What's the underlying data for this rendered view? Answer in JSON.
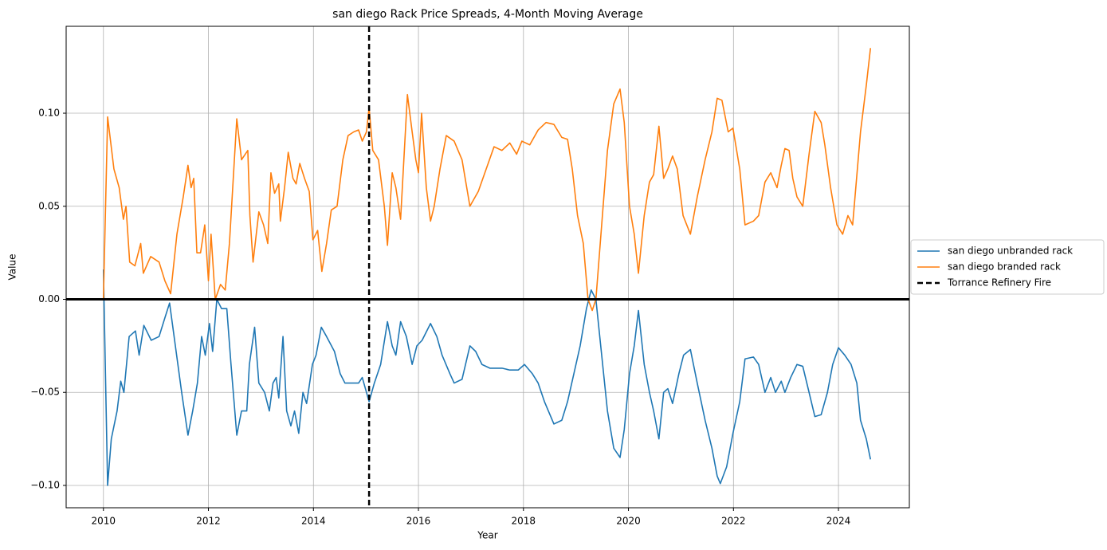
{
  "chart_data": {
    "type": "line",
    "title": "san diego Rack Price Spreads, 4-Month Moving Average",
    "x_label": "Year",
    "y_label": "Value",
    "xlim": [
      2009.29,
      2025.35
    ],
    "ylim": [
      -0.112,
      0.1467
    ],
    "xticks": [
      2010,
      2012,
      2014,
      2016,
      2018,
      2020,
      2022,
      2024
    ],
    "yticks": [
      {
        "value": -0.1,
        "label": "−0.10"
      },
      {
        "value": -0.05,
        "label": "−0.05"
      },
      {
        "value": 0,
        "label": "0.00"
      },
      {
        "value": 0.05,
        "label": "0.05"
      },
      {
        "value": 0.1,
        "label": "0.10"
      }
    ],
    "grid": true,
    "legend": "right",
    "hline": 0,
    "vline": {
      "x": 2015.06,
      "name": "Torrance Refinery Fire",
      "color": "#000000"
    },
    "series": [
      {
        "name": "san diego unbranded rack",
        "color": "#1f77b4",
        "x": [
          2010.0,
          2010.08,
          2010.15,
          2010.26,
          2010.33,
          2010.39,
          2010.49,
          2010.61,
          2010.68,
          2010.77,
          2010.91,
          2011.06,
          2011.17,
          2011.26,
          2011.37,
          2011.49,
          2011.61,
          2011.7,
          2011.79,
          2011.87,
          2011.94,
          2012.02,
          2012.08,
          2012.16,
          2012.25,
          2012.35,
          2012.43,
          2012.54,
          2012.63,
          2012.73,
          2012.78,
          2012.88,
          2012.96,
          2013.07,
          2013.16,
          2013.23,
          2013.29,
          2013.34,
          2013.42,
          2013.49,
          2013.57,
          2013.64,
          2013.72,
          2013.8,
          2013.87,
          2013.98,
          2014.05,
          2014.15,
          2014.25,
          2014.4,
          2014.51,
          2014.6,
          2014.71,
          2014.86,
          2014.93,
          2015.06,
          2015.16,
          2015.28,
          2015.41,
          2015.5,
          2015.57,
          2015.66,
          2015.77,
          2015.88,
          2015.97,
          2016.07,
          2016.23,
          2016.35,
          2016.45,
          2016.6,
          2016.68,
          2016.83,
          2016.98,
          2017.09,
          2017.21,
          2017.36,
          2017.59,
          2017.74,
          2017.9,
          2018.02,
          2018.17,
          2018.28,
          2018.4,
          2018.58,
          2018.73,
          2018.84,
          2018.96,
          2019.08,
          2019.2,
          2019.29,
          2019.38,
          2019.49,
          2019.6,
          2019.72,
          2019.84,
          2019.92,
          2020.02,
          2020.11,
          2020.19,
          2020.3,
          2020.4,
          2020.48,
          2020.58,
          2020.67,
          2020.75,
          2020.84,
          2020.96,
          2021.05,
          2021.18,
          2021.31,
          2021.46,
          2021.59,
          2021.69,
          2021.75,
          2021.87,
          2021.99,
          2022.12,
          2022.22,
          2022.38,
          2022.48,
          2022.6,
          2022.71,
          2022.8,
          2022.91,
          2022.98,
          2023.09,
          2023.21,
          2023.32,
          2023.44,
          2023.55,
          2023.67,
          2023.79,
          2023.89,
          2024.0,
          2024.12,
          2024.24,
          2024.35,
          2024.42,
          2024.53,
          2024.61
        ],
        "values": [
          0.016,
          -0.1,
          -0.075,
          -0.06,
          -0.044,
          -0.05,
          -0.02,
          -0.017,
          -0.03,
          -0.014,
          -0.022,
          -0.02,
          -0.01,
          -0.002,
          -0.025,
          -0.05,
          -0.073,
          -0.06,
          -0.045,
          -0.02,
          -0.03,
          -0.013,
          -0.028,
          0.0,
          -0.005,
          -0.005,
          -0.035,
          -0.073,
          -0.06,
          -0.06,
          -0.035,
          -0.015,
          -0.045,
          -0.05,
          -0.06,
          -0.045,
          -0.042,
          -0.053,
          -0.02,
          -0.06,
          -0.068,
          -0.06,
          -0.072,
          -0.05,
          -0.056,
          -0.035,
          -0.03,
          -0.015,
          -0.02,
          -0.028,
          -0.04,
          -0.045,
          -0.045,
          -0.045,
          -0.042,
          -0.055,
          -0.045,
          -0.035,
          -0.012,
          -0.025,
          -0.03,
          -0.012,
          -0.02,
          -0.035,
          -0.025,
          -0.022,
          -0.013,
          -0.02,
          -0.03,
          -0.04,
          -0.045,
          -0.043,
          -0.025,
          -0.028,
          -0.035,
          -0.037,
          -0.037,
          -0.038,
          -0.038,
          -0.035,
          -0.04,
          -0.045,
          -0.055,
          -0.067,
          -0.065,
          -0.055,
          -0.04,
          -0.025,
          -0.005,
          0.005,
          0.0,
          -0.03,
          -0.06,
          -0.08,
          -0.085,
          -0.07,
          -0.04,
          -0.025,
          -0.006,
          -0.035,
          -0.05,
          -0.06,
          -0.075,
          -0.05,
          -0.048,
          -0.056,
          -0.04,
          -0.03,
          -0.027,
          -0.045,
          -0.065,
          -0.08,
          -0.095,
          -0.099,
          -0.09,
          -0.072,
          -0.055,
          -0.032,
          -0.031,
          -0.035,
          -0.05,
          -0.042,
          -0.05,
          -0.044,
          -0.05,
          -0.042,
          -0.035,
          -0.036,
          -0.05,
          -0.063,
          -0.062,
          -0.05,
          -0.035,
          -0.026,
          -0.03,
          -0.035,
          -0.045,
          -0.065,
          -0.075,
          -0.086
        ]
      },
      {
        "name": "san diego branded rack",
        "color": "#ff7f0e",
        "x": [
          2010.0,
          2010.08,
          2010.2,
          2010.3,
          2010.38,
          2010.43,
          2010.5,
          2010.6,
          2010.71,
          2010.76,
          2010.9,
          2011.06,
          2011.17,
          2011.28,
          2011.4,
          2011.52,
          2011.61,
          2011.67,
          2011.72,
          2011.78,
          2011.85,
          2011.93,
          2012.0,
          2012.05,
          2012.13,
          2012.23,
          2012.32,
          2012.4,
          2012.54,
          2012.63,
          2012.75,
          2012.79,
          2012.85,
          2012.96,
          2013.05,
          2013.13,
          2013.19,
          2013.26,
          2013.34,
          2013.37,
          2013.45,
          2013.52,
          2013.61,
          2013.67,
          2013.74,
          2013.83,
          2013.92,
          2013.99,
          2014.08,
          2014.16,
          2014.25,
          2014.34,
          2014.45,
          2014.56,
          2014.66,
          2014.77,
          2014.86,
          2014.93,
          2015.01,
          2015.06,
          2015.13,
          2015.24,
          2015.35,
          2015.41,
          2015.5,
          2015.57,
          2015.66,
          2015.79,
          2015.88,
          2015.95,
          2016.0,
          2016.06,
          2016.15,
          2016.23,
          2016.3,
          2016.41,
          2016.53,
          2016.68,
          2016.83,
          2016.98,
          2017.14,
          2017.29,
          2017.44,
          2017.59,
          2017.74,
          2017.87,
          2017.97,
          2018.12,
          2018.28,
          2018.43,
          2018.58,
          2018.73,
          2018.84,
          2018.93,
          2019.03,
          2019.14,
          2019.23,
          2019.31,
          2019.38,
          2019.49,
          2019.6,
          2019.72,
          2019.84,
          2019.92,
          2020.02,
          2020.11,
          2020.19,
          2020.3,
          2020.4,
          2020.48,
          2020.58,
          2020.67,
          2020.75,
          2020.84,
          2020.93,
          2021.04,
          2021.18,
          2021.31,
          2021.46,
          2021.59,
          2021.69,
          2021.78,
          2021.9,
          2021.99,
          2022.12,
          2022.22,
          2022.38,
          2022.48,
          2022.6,
          2022.71,
          2022.83,
          2022.91,
          2022.98,
          2023.06,
          2023.13,
          2023.21,
          2023.32,
          2023.44,
          2023.55,
          2023.67,
          2023.74,
          2023.85,
          2023.97,
          2024.08,
          2024.18,
          2024.27,
          2024.42,
          2024.53,
          2024.61
        ],
        "values": [
          0.0,
          0.098,
          0.07,
          0.06,
          0.043,
          0.05,
          0.02,
          0.018,
          0.03,
          0.014,
          0.023,
          0.02,
          0.01,
          0.003,
          0.035,
          0.055,
          0.072,
          0.06,
          0.065,
          0.025,
          0.025,
          0.04,
          0.01,
          0.035,
          0.0,
          0.008,
          0.005,
          0.03,
          0.097,
          0.075,
          0.08,
          0.045,
          0.02,
          0.047,
          0.04,
          0.03,
          0.068,
          0.057,
          0.062,
          0.042,
          0.06,
          0.079,
          0.065,
          0.062,
          0.073,
          0.065,
          0.058,
          0.032,
          0.037,
          0.015,
          0.03,
          0.048,
          0.05,
          0.075,
          0.088,
          0.09,
          0.091,
          0.085,
          0.09,
          0.103,
          0.08,
          0.075,
          0.05,
          0.029,
          0.068,
          0.06,
          0.043,
          0.11,
          0.09,
          0.075,
          0.068,
          0.1,
          0.06,
          0.042,
          0.05,
          0.07,
          0.088,
          0.085,
          0.075,
          0.05,
          0.058,
          0.07,
          0.082,
          0.08,
          0.084,
          0.078,
          0.085,
          0.083,
          0.091,
          0.095,
          0.094,
          0.087,
          0.086,
          0.07,
          0.045,
          0.03,
          0.0,
          -0.006,
          0.0,
          0.04,
          0.08,
          0.105,
          0.113,
          0.095,
          0.05,
          0.035,
          0.014,
          0.045,
          0.063,
          0.067,
          0.093,
          0.065,
          0.07,
          0.077,
          0.07,
          0.045,
          0.035,
          0.055,
          0.075,
          0.09,
          0.108,
          0.107,
          0.09,
          0.092,
          0.07,
          0.04,
          0.042,
          0.045,
          0.063,
          0.068,
          0.06,
          0.072,
          0.081,
          0.08,
          0.065,
          0.055,
          0.05,
          0.078,
          0.101,
          0.095,
          0.083,
          0.06,
          0.04,
          0.035,
          0.045,
          0.04,
          0.09,
          0.115,
          0.135
        ]
      }
    ]
  }
}
